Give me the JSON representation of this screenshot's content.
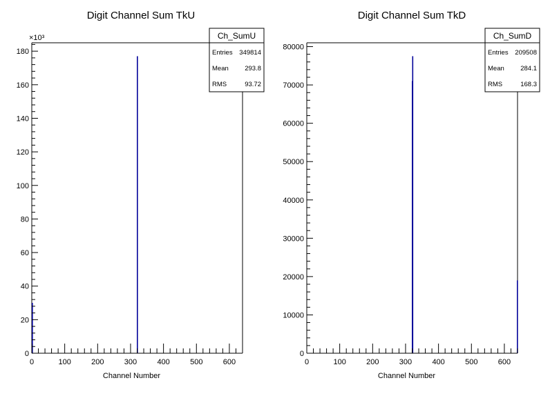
{
  "chart_data": [
    {
      "type": "bar",
      "title": "Digit Channel Sum TkU",
      "xlabel": "Channel Number",
      "ylabel": "",
      "y_multiplier_label": "×10³",
      "xlim": [
        0,
        640
      ],
      "ylim": [
        0,
        185000
      ],
      "x_ticks": [
        0,
        100,
        200,
        300,
        400,
        500,
        600
      ],
      "y_ticks": [
        0,
        20000,
        40000,
        60000,
        80000,
        100000,
        120000,
        140000,
        160000,
        180000
      ],
      "y_tick_labels": [
        "0",
        "20",
        "40",
        "60",
        "80",
        "100",
        "120",
        "140",
        "160",
        "180"
      ],
      "bar_color": "#000099",
      "bins": [
        {
          "x": 0,
          "value": 30000
        },
        {
          "x": 319,
          "value": 177000
        }
      ],
      "stats": {
        "name": "Ch_SumU",
        "rows": [
          {
            "label": "Entries",
            "value": "349814"
          },
          {
            "label": "Mean",
            "value": "293.8"
          },
          {
            "label": "RMS",
            "value": "93.72"
          }
        ]
      }
    },
    {
      "type": "bar",
      "title": "Digit Channel Sum TkD",
      "xlabel": "Channel Number",
      "ylabel": "",
      "xlim": [
        0,
        640
      ],
      "ylim": [
        0,
        81000
      ],
      "x_ticks": [
        0,
        100,
        200,
        300,
        400,
        500,
        600
      ],
      "y_ticks": [
        0,
        10000,
        20000,
        30000,
        40000,
        50000,
        60000,
        70000,
        80000
      ],
      "y_tick_labels": [
        "0",
        "10000",
        "20000",
        "30000",
        "40000",
        "50000",
        "60000",
        "70000",
        "80000"
      ],
      "bar_color": "#000099",
      "bins": [
        {
          "x": 319,
          "value": 71000
        },
        {
          "x": 320,
          "value": 77500
        },
        {
          "x": 638,
          "value": 19000
        }
      ],
      "stats": {
        "name": "Ch_SumD",
        "rows": [
          {
            "label": "Entries",
            "value": "209508"
          },
          {
            "label": "Mean",
            "value": "284.1"
          },
          {
            "label": "RMS",
            "value": "168.3"
          }
        ]
      }
    }
  ]
}
